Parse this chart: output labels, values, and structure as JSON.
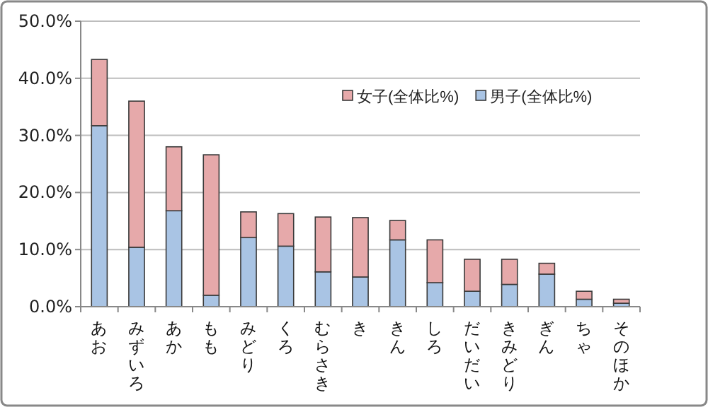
{
  "chart_data": {
    "type": "bar",
    "stacked": true,
    "categories": [
      "あお",
      "みずいろ",
      "あか",
      "もも",
      "みどり",
      "くろ",
      "むらさき",
      "き",
      "きん",
      "しろ",
      "だいだい",
      "きみどり",
      "ぎん",
      "ちゃ",
      "そのほか"
    ],
    "series": [
      {
        "name": "男子(全体比%)",
        "color": "#a9c4e4",
        "values": [
          31.7,
          10.4,
          16.8,
          2.0,
          12.1,
          10.6,
          6.1,
          5.2,
          11.7,
          4.2,
          2.7,
          3.9,
          5.7,
          1.3,
          0.6
        ]
      },
      {
        "name": "女子(全体比%)",
        "color": "#e6a9aa",
        "values": [
          11.6,
          25.6,
          11.2,
          24.6,
          4.5,
          5.7,
          9.6,
          10.4,
          3.4,
          7.5,
          5.6,
          4.4,
          1.9,
          1.4,
          0.7
        ]
      }
    ],
    "ylim": [
      0,
      50
    ],
    "yticks": [
      {
        "value": 0,
        "label": "0.0%"
      },
      {
        "value": 10,
        "label": "10.0%"
      },
      {
        "value": 20,
        "label": "20.0%"
      },
      {
        "value": 30,
        "label": "30.0%"
      },
      {
        "value": 40,
        "label": "40.0%"
      },
      {
        "value": 50,
        "label": "50.0%"
      }
    ],
    "grid": "y",
    "legend": "top right"
  }
}
